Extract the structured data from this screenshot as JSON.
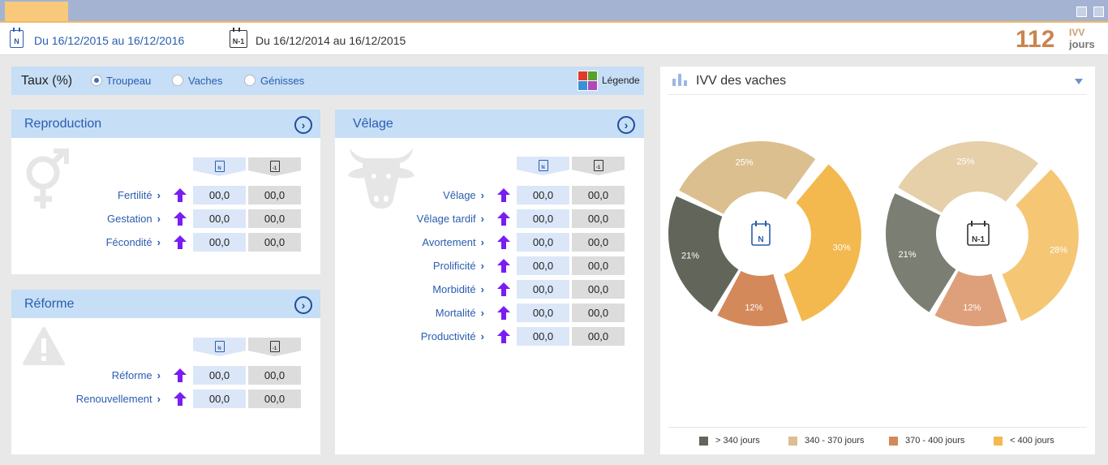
{
  "period": {
    "current_badge": "N",
    "current_range": "Du 16/12/2015 au 16/12/2016",
    "previous_badge": "N-1",
    "previous_range": "Du 16/12/2014 au 16/12/2015"
  },
  "ivv_summary": {
    "value": "112",
    "label": "IVV",
    "unit": "jours"
  },
  "filter": {
    "title": "Taux (%)",
    "options": [
      {
        "label": "Troupeau",
        "selected": true
      },
      {
        "label": "Vaches",
        "selected": false
      },
      {
        "label": "Génisses",
        "selected": false
      }
    ],
    "legend_label": "Légende",
    "legend_colors": [
      "#e03a2a",
      "#5aa02c",
      "#3b8fd6",
      "#b04ab8"
    ]
  },
  "column_badges": {
    "n": "N",
    "n1": "-1"
  },
  "panels": {
    "reproduction": {
      "title": "Reproduction",
      "icon": "gender-icon",
      "rows": [
        {
          "label": "Fertilité",
          "n": "00,0",
          "n1": "00,0"
        },
        {
          "label": "Gestation",
          "n": "00,0",
          "n1": "00,0"
        },
        {
          "label": "Fécondité",
          "n": "00,0",
          "n1": "00,0"
        }
      ]
    },
    "reforme": {
      "title": "Réforme",
      "icon": "warning-icon",
      "rows": [
        {
          "label": "Réforme",
          "n": "00,0",
          "n1": "00,0"
        },
        {
          "label": "Renouvellement",
          "n": "00,0",
          "n1": "00,0"
        }
      ]
    },
    "velage": {
      "title": "Vêlage",
      "icon": "cow-icon",
      "rows": [
        {
          "label": "Vêlage",
          "n": "00,0",
          "n1": "00,0"
        },
        {
          "label": "Vêlage tardif",
          "n": "00,0",
          "n1": "00,0"
        },
        {
          "label": "Avortement",
          "n": "00,0",
          "n1": "00,0"
        },
        {
          "label": "Prolificité",
          "n": "00,0",
          "n1": "00,0"
        },
        {
          "label": "Morbidité",
          "n": "00,0",
          "n1": "00,0"
        },
        {
          "label": "Mortalité",
          "n": "00,0",
          "n1": "00,0"
        },
        {
          "label": "Productivité",
          "n": "00,0",
          "n1": "00,0"
        }
      ]
    }
  },
  "ivv_chart": {
    "title": "IVV des vaches",
    "legend": [
      {
        "label": "> 340 jours",
        "color": "#62665a"
      },
      {
        "label": "340 - 370 jours",
        "color": "#dbbf8e"
      },
      {
        "label": "370 - 400 jours",
        "color": "#d4895a"
      },
      {
        "label": "< 400 jours",
        "color": "#f3b84e"
      }
    ]
  },
  "chart_data": [
    {
      "type": "pie",
      "title": "",
      "center_badge": "N",
      "categories": [
        "> 340 jours",
        "340 - 370 jours",
        "< 400 jours",
        "370 - 400 jours"
      ],
      "values": [
        21,
        25,
        30,
        12
      ],
      "labels": [
        "21%",
        "25%",
        "30%",
        "12%"
      ]
    },
    {
      "type": "pie",
      "title": "",
      "center_badge": "N-1",
      "categories": [
        "> 340 jours",
        "340 - 370 jours",
        "< 400 jours",
        "370 - 400 jours"
      ],
      "values": [
        21,
        25,
        28,
        12
      ],
      "labels": [
        "21%",
        "25%",
        "28%",
        "12%"
      ]
    }
  ]
}
